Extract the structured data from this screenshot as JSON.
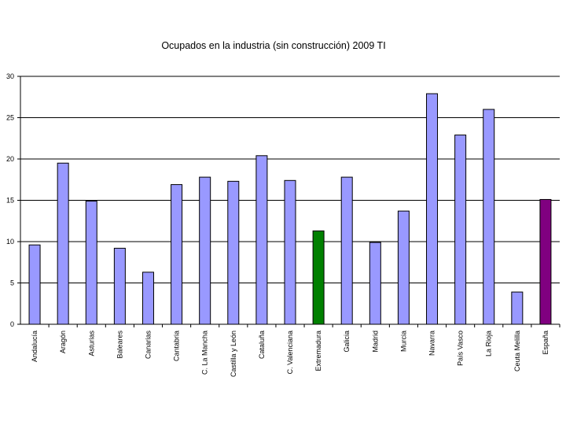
{
  "chart_data": {
    "type": "bar",
    "title": "Ocupados en la industria (sin construcción) 2009 TI",
    "xlabel": "",
    "ylabel": "",
    "ylim": [
      0,
      30
    ],
    "yticks": [
      0,
      5,
      10,
      15,
      20,
      25,
      30
    ],
    "grid": true,
    "legend": "none",
    "categories": [
      "Andalucía",
      "Aragón",
      "Asturias",
      "Baleares",
      "Canarias",
      "Cantabria",
      "C. La Mancha",
      "Castilla y León",
      "Cataluña",
      "C. Valenciana",
      "Extremadura",
      "Galicia",
      "Madrid",
      "Murcia",
      "Navarra",
      "País Vasco",
      "La Rioja",
      "Ceuta Melilla",
      "España"
    ],
    "values": [
      9.6,
      19.5,
      14.9,
      9.2,
      6.3,
      16.9,
      17.8,
      17.3,
      20.4,
      17.4,
      11.3,
      17.8,
      9.9,
      13.7,
      27.9,
      22.9,
      26.0,
      3.9,
      15.1
    ],
    "colors": {
      "default": "#9999ff",
      "Extremadura": "#008000",
      "España": "#800080",
      "outline": "#000000",
      "grid": "#000000"
    }
  }
}
